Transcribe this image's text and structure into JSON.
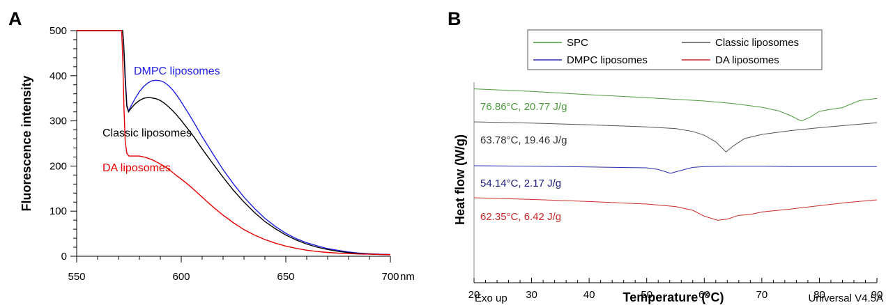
{
  "chart_data": [
    {
      "panel": "A",
      "type": "line",
      "xlabel": "",
      "x_unit": "nm",
      "ylabel": "Fluorescence intensity",
      "xlim": [
        550,
        700
      ],
      "ylim": [
        0,
        500
      ],
      "x_ticks": [
        550,
        600,
        650,
        700
      ],
      "y_ticks": [
        0,
        100,
        200,
        300,
        400,
        500
      ],
      "series": [
        {
          "name": "DMPC liposomes",
          "color": "#1f1fe6",
          "points": [
            [
              550,
              500
            ],
            [
              572,
              500
            ],
            [
              572.5,
              470
            ],
            [
              573.2,
              400
            ],
            [
              574,
              335
            ],
            [
              574.8,
              322
            ],
            [
              576,
              333
            ],
            [
              578,
              350
            ],
            [
              580,
              365
            ],
            [
              582,
              376
            ],
            [
              584,
              384
            ],
            [
              586,
              389
            ],
            [
              588,
              390
            ],
            [
              590,
              389
            ],
            [
              592,
              385
            ],
            [
              594,
              378
            ],
            [
              596,
              368
            ],
            [
              598,
              356
            ],
            [
              600,
              342
            ],
            [
              603,
              320
            ],
            [
              606,
              297
            ],
            [
              610,
              265
            ],
            [
              615,
              228
            ],
            [
              620,
              192
            ],
            [
              625,
              160
            ],
            [
              630,
              131
            ],
            [
              635,
              106
            ],
            [
              640,
              84
            ],
            [
              645,
              66
            ],
            [
              650,
              51
            ],
            [
              655,
              39
            ],
            [
              660,
              30
            ],
            [
              665,
              23
            ],
            [
              670,
              17
            ],
            [
              675,
              13
            ],
            [
              680,
              9.5
            ],
            [
              685,
              7
            ],
            [
              690,
              5.5
            ],
            [
              695,
              4.5
            ],
            [
              700,
              4
            ]
          ]
        },
        {
          "name": "Classic liposomes",
          "color": "#000000",
          "points": [
            [
              550,
              500
            ],
            [
              572,
              500
            ],
            [
              572.5,
              465
            ],
            [
              573.2,
              390
            ],
            [
              574,
              332
            ],
            [
              574.8,
              320
            ],
            [
              576,
              328
            ],
            [
              578,
              338
            ],
            [
              580,
              345
            ],
            [
              582,
              350
            ],
            [
              584,
              352
            ],
            [
              586,
              351
            ],
            [
              588,
              349
            ],
            [
              590,
              345
            ],
            [
              592,
              339
            ],
            [
              594,
              331
            ],
            [
              596,
              322
            ],
            [
              598,
              312
            ],
            [
              600,
              301
            ],
            [
              603,
              283
            ],
            [
              606,
              265
            ],
            [
              610,
              238
            ],
            [
              615,
              206
            ],
            [
              620,
              175
            ],
            [
              625,
              146
            ],
            [
              630,
              120
            ],
            [
              635,
              97
            ],
            [
              640,
              77
            ],
            [
              645,
              61
            ],
            [
              650,
              47
            ],
            [
              655,
              36
            ],
            [
              660,
              27
            ],
            [
              665,
              20
            ],
            [
              670,
              15
            ],
            [
              675,
              11
            ],
            [
              680,
              8
            ],
            [
              685,
              6
            ],
            [
              690,
              5
            ],
            [
              695,
              4
            ],
            [
              700,
              3.5
            ]
          ]
        },
        {
          "name": "DA liposomes",
          "color": "#e60000",
          "points": [
            [
              550,
              500
            ],
            [
              571.5,
              500
            ],
            [
              572,
              440
            ],
            [
              572.6,
              330
            ],
            [
              573.2,
              255
            ],
            [
              574,
              228
            ],
            [
              575,
              222
            ],
            [
              577,
              222
            ],
            [
              580,
              222
            ],
            [
              583,
              219
            ],
            [
              586,
              214
            ],
            [
              589,
              207
            ],
            [
              592,
              199
            ],
            [
              595,
              189
            ],
            [
              598,
              178
            ],
            [
              600,
              171
            ],
            [
              603,
              160
            ],
            [
              606,
              148
            ],
            [
              610,
              131
            ],
            [
              615,
              110
            ],
            [
              620,
              91
            ],
            [
              625,
              74
            ],
            [
              630,
              59
            ],
            [
              635,
              47
            ],
            [
              640,
              37
            ],
            [
              645,
              29
            ],
            [
              650,
              22.5
            ],
            [
              655,
              17.5
            ],
            [
              660,
              13.5
            ],
            [
              665,
              10.5
            ],
            [
              670,
              8.5
            ],
            [
              675,
              7
            ],
            [
              680,
              6
            ],
            [
              685,
              5
            ],
            [
              690,
              4.5
            ],
            [
              695,
              4
            ],
            [
              700,
              3.5
            ]
          ]
        }
      ],
      "annotations": [
        {
          "text": "DMPC liposomes",
          "color": "#1f1fe6"
        },
        {
          "text": "Classic liposomes",
          "color": "#000000"
        },
        {
          "text": "DA liposomes",
          "color": "#e60000"
        }
      ]
    },
    {
      "panel": "B",
      "type": "line",
      "xlabel": "Temperature (°C)",
      "ylabel": "Heat flow (W/g)",
      "xlim": [
        20,
        90
      ],
      "x_ticks": [
        20,
        30,
        40,
        50,
        60,
        70,
        80,
        90
      ],
      "y_ticks": [],
      "legend_position": "top",
      "footer_left": "Exo up",
      "footer_right": "Universal V4.5A",
      "series": [
        {
          "name": "SPC",
          "color": "#4c9a3c",
          "points": [
            [
              20,
              -0.05
            ],
            [
              30,
              -0.35
            ],
            [
              40,
              -0.75
            ],
            [
              50,
              -1.1
            ],
            [
              60,
              -1.5
            ],
            [
              65,
              -1.8
            ],
            [
              70,
              -2.25
            ],
            [
              73,
              -2.7
            ],
            [
              75,
              -3.25
            ],
            [
              76.86,
              -3.9
            ],
            [
              78.5,
              -3.4
            ],
            [
              80,
              -2.75
            ],
            [
              82,
              -2.5
            ],
            [
              84,
              -2.3
            ],
            [
              85,
              -2.0
            ],
            [
              87,
              -1.45
            ],
            [
              90,
              -1.2
            ]
          ]
        },
        {
          "name": "Classic liposomes",
          "color": "#555555",
          "points": [
            [
              20,
              0
            ],
            [
              30,
              -0.15
            ],
            [
              40,
              -0.35
            ],
            [
              50,
              -0.6
            ],
            [
              55,
              -0.8
            ],
            [
              58,
              -1.15
            ],
            [
              60,
              -1.6
            ],
            [
              62,
              -2.4
            ],
            [
              63.78,
              -3.6
            ],
            [
              65,
              -2.9
            ],
            [
              67,
              -2.0
            ],
            [
              70,
              -1.5
            ],
            [
              75,
              -1.05
            ],
            [
              80,
              -0.7
            ],
            [
              85,
              -0.4
            ],
            [
              90,
              -0.1
            ]
          ]
        },
        {
          "name": "DMPC liposomes",
          "color": "#2a2ab0",
          "points": [
            [
              20,
              0
            ],
            [
              30,
              -0.05
            ],
            [
              40,
              -0.15
            ],
            [
              50,
              -0.25
            ],
            [
              52,
              -0.45
            ],
            [
              54.14,
              -0.9
            ],
            [
              56,
              -0.55
            ],
            [
              58,
              -0.2
            ],
            [
              60,
              -0.1
            ],
            [
              65,
              -0.05
            ],
            [
              70,
              -0.05
            ],
            [
              75,
              -0.1
            ],
            [
              80,
              -0.1
            ],
            [
              85,
              -0.1
            ],
            [
              90,
              -0.1
            ]
          ]
        },
        {
          "name": "DA liposomes",
          "color": "#cc2a2a",
          "points": [
            [
              20,
              0
            ],
            [
              30,
              -0.2
            ],
            [
              40,
              -0.45
            ],
            [
              50,
              -0.75
            ],
            [
              55,
              -1.05
            ],
            [
              58,
              -1.5
            ],
            [
              60,
              -2.2
            ],
            [
              62.35,
              -2.7
            ],
            [
              64,
              -2.55
            ],
            [
              66,
              -2.1
            ],
            [
              68,
              -2.0
            ],
            [
              70,
              -1.7
            ],
            [
              75,
              -1.35
            ],
            [
              80,
              -0.95
            ],
            [
              85,
              -0.55
            ],
            [
              90,
              -0.25
            ]
          ]
        }
      ],
      "annotations": [
        {
          "text": "76.86°C, 20.77 J/g",
          "color": "#4c9a3c"
        },
        {
          "text": "63.78°C, 19.46 J/g",
          "color": "#333333"
        },
        {
          "text": "54.14°C, 2.17 J/g",
          "color": "#1a1a7a"
        },
        {
          "text": "62.35°C, 6.42 J/g",
          "color": "#cc2a2a"
        }
      ]
    }
  ]
}
